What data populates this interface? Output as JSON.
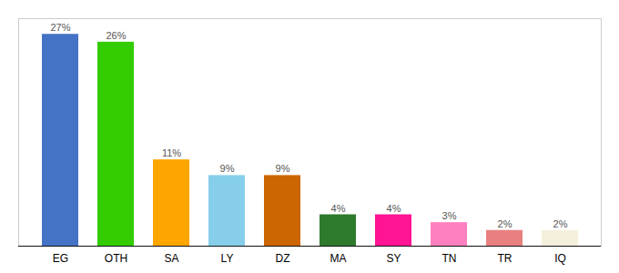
{
  "chart_data": {
    "type": "bar",
    "categories": [
      "EG",
      "OTH",
      "SA",
      "LY",
      "DZ",
      "MA",
      "SY",
      "TN",
      "TR",
      "IQ"
    ],
    "values": [
      27,
      26,
      11,
      9,
      9,
      4,
      4,
      3,
      2,
      2
    ],
    "value_labels": [
      "27%",
      "26%",
      "11%",
      "9%",
      "9%",
      "4%",
      "4%",
      "3%",
      "2%",
      "2%"
    ],
    "colors": [
      "#4472C4",
      "#33CC00",
      "#FFA500",
      "#87CEEB",
      "#CC6600",
      "#2D7A2D",
      "#FF1493",
      "#FF80C0",
      "#E88080",
      "#F5F0DC"
    ],
    "ylim": [
      0,
      29
    ],
    "data_labels": true,
    "tick_labels": "x",
    "grid": false
  }
}
